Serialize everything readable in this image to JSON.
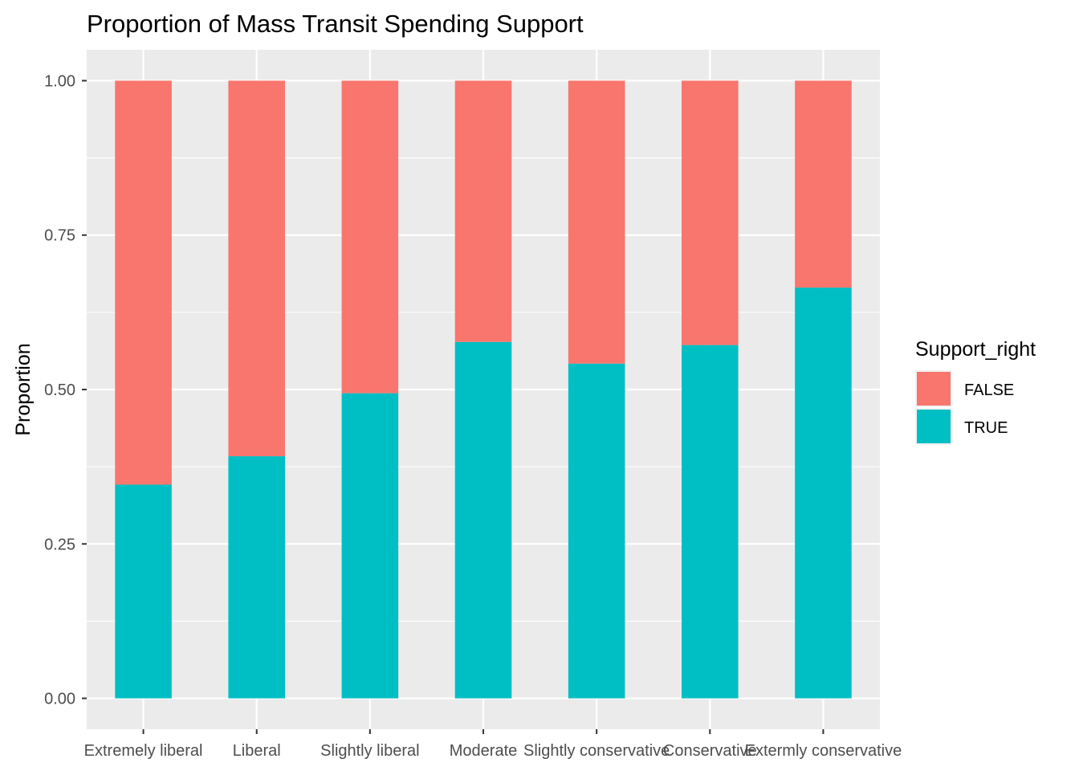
{
  "chart_data": {
    "type": "bar",
    "stacked": true,
    "title": "Proportion of Mass Transit Spending Support",
    "xlabel": "",
    "ylabel": "Proportion",
    "ylim": [
      -0.05,
      1.05
    ],
    "yticks": [
      "0.00",
      "0.25",
      "0.50",
      "0.75",
      "1.00"
    ],
    "ytick_values": [
      0,
      0.25,
      0.5,
      0.75,
      1.0
    ],
    "grid": true,
    "categories": [
      "Extremely liberal",
      "Liberal",
      "Slightly liberal",
      "Moderate",
      "Slightly conservative",
      "Conservative",
      "Extermly conservative"
    ],
    "series": [
      {
        "name": "TRUE",
        "color": "#00BFC4",
        "values": [
          0.346,
          0.392,
          0.494,
          0.577,
          0.542,
          0.572,
          0.665
        ]
      },
      {
        "name": "FALSE",
        "color": "#F8766D",
        "values": [
          0.654,
          0.608,
          0.506,
          0.423,
          0.458,
          0.428,
          0.335
        ]
      }
    ],
    "legend": {
      "title": "Support_right",
      "position": "right",
      "entries": [
        "FALSE",
        "TRUE"
      ]
    },
    "panel_background": "#EBEBEB",
    "grid_color": "#FFFFFF"
  }
}
